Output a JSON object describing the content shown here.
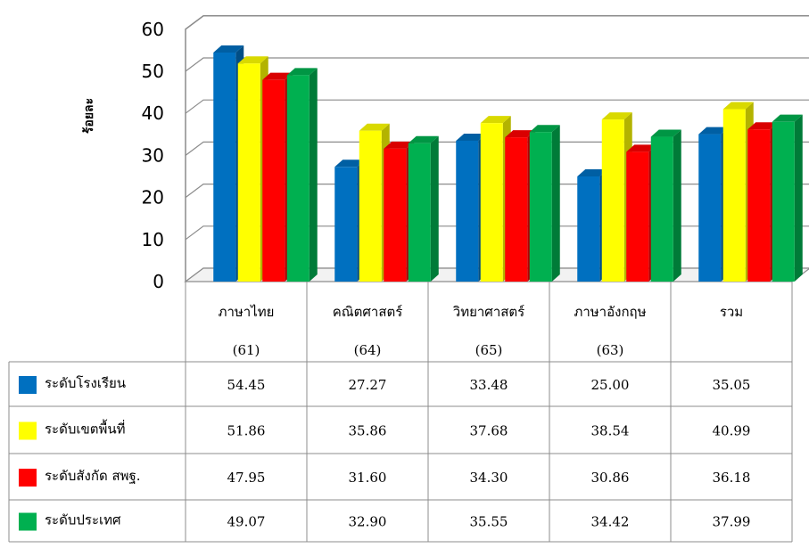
{
  "chart_data": {
    "type": "bar",
    "ylabel": "ร้อยละ",
    "ylim": [
      0,
      60
    ],
    "yticks": [
      0,
      10,
      20,
      30,
      40,
      50,
      60
    ],
    "grid": true,
    "legend_placement": "data-table-left",
    "categories": [
      "ภาษาไทย",
      "คณิตศาสตร์",
      "วิทยาศาสตร์",
      "ภาษาอังกฤษ",
      "รวม"
    ],
    "category_codes": [
      "(61)",
      "(64)",
      "(65)",
      "(63)",
      ""
    ],
    "series": [
      {
        "name": "ระดับโรงเรียน",
        "color": "#0070C0",
        "values": [
          54.45,
          27.27,
          33.48,
          25.0,
          35.05
        ]
      },
      {
        "name": "ระดับเขตพื้นที่",
        "color": "#FFFF00",
        "values": [
          51.86,
          35.86,
          37.68,
          38.54,
          40.99
        ]
      },
      {
        "name": "ระดับสังกัด สพฐ.",
        "color": "#FF0000",
        "values": [
          47.95,
          31.6,
          34.3,
          30.86,
          36.18
        ]
      },
      {
        "name": "ระดับประเทศ",
        "color": "#00B050",
        "values": [
          49.07,
          32.9,
          35.55,
          34.42,
          37.99
        ]
      }
    ],
    "table_values": [
      [
        "54.45",
        "27.27",
        "33.48",
        "25.00",
        "35.05"
      ],
      [
        "51.86",
        "35.86",
        "37.68",
        "38.54",
        "40.99"
      ],
      [
        "47.95",
        "31.60",
        "34.30",
        "30.86",
        "36.18"
      ],
      [
        "49.07",
        "32.90",
        "35.55",
        "34.42",
        "37.99"
      ]
    ]
  }
}
